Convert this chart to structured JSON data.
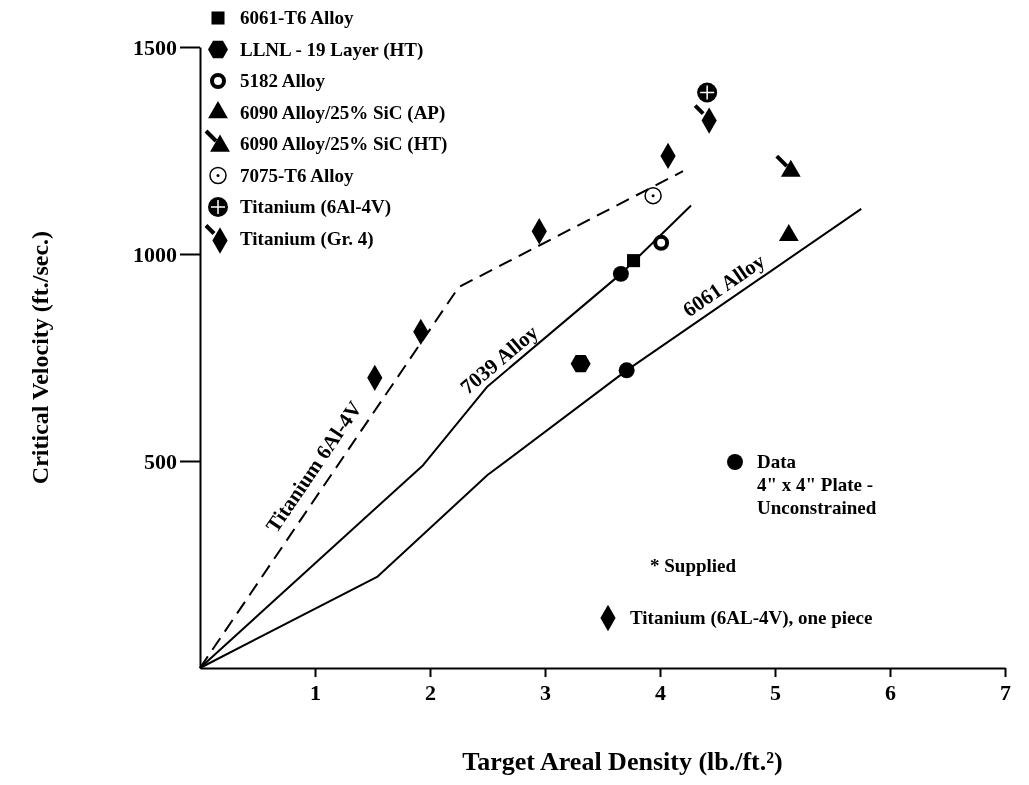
{
  "chart_data": {
    "type": "scatter",
    "xlabel": "Target Areal Density (lb./ft.²)",
    "ylabel": "Critical Velocity (ft./sec.)",
    "xlim": [
      0,
      7
    ],
    "xticks": [
      1,
      2,
      3,
      4,
      5,
      6,
      7
    ],
    "ylim": [
      0,
      1500
    ],
    "yticks": [
      500,
      1000,
      1500
    ],
    "grid": false,
    "legend": "top left",
    "annotations": [
      "* Supplied"
    ],
    "series": [
      {
        "name": "6061-T6 Alloy",
        "color": "#000000",
        "marker": "square",
        "x": [
          3.77
        ],
        "values": [
          984
        ]
      },
      {
        "name": "LLNL - 19 Layer (HT)",
        "color": "#000000",
        "marker": "circle-hexagon",
        "x": [
          3.31
        ],
        "values": [
          735
        ]
      },
      {
        "name": "5182 Alloy",
        "color": "#000000",
        "marker": "circle-open",
        "x": [
          4.01
        ],
        "values": [
          1027
        ]
      },
      {
        "name": "6090 Alloy/25% SiC (AP)",
        "color": "#000000",
        "marker": "triangle",
        "x": [
          5.12
        ],
        "values": [
          1045
        ]
      },
      {
        "name": "6090 Alloy/25% SiC (HT)",
        "color": "#000000",
        "marker": "triangle-arrow",
        "x": [
          5.12
        ],
        "values": [
          1205
        ]
      },
      {
        "name": "7075-T6 Alloy",
        "color": "#000000",
        "marker": "circle-dot",
        "x": [
          3.94
        ],
        "values": [
          1141
        ]
      },
      {
        "name": "Titanium (6Al-4V)",
        "color": "#000000",
        "marker": "circle-cross",
        "x": [
          4.41
        ],
        "values": [
          1390
        ]
      },
      {
        "name": "Titanium (Gr. 4)",
        "color": "#000000",
        "marker": "diamond-arrow",
        "x": [
          4.41
        ],
        "values": [
          1327
        ]
      },
      {
        "name": "Data\n4\" x 4\" Plate -\nUnconstrained",
        "color": "#000000",
        "marker": "circle",
        "x": [
          3.66,
          3.71
        ],
        "values": [
          952,
          719
        ]
      },
      {
        "name": "Titanium (6AL-4V), one piece",
        "color": "#000000",
        "marker": "diamond",
        "x": [
          1.52,
          1.92,
          2.95,
          4.07
        ],
        "values": [
          701,
          812,
          1055,
          1237
        ]
      },
      {
        "name": "Titanium 6Al-4V",
        "type": "line",
        "color": "#000000",
        "line_style": "dashed",
        "marker": "none",
        "x": [
          0,
          2.25,
          4.2
        ],
        "values": [
          0,
          920,
          1200
        ]
      },
      {
        "name": "7039 Alloy",
        "type": "line",
        "color": "#000000",
        "line_style": "solid",
        "marker": "none",
        "x": [
          0,
          1.94,
          2.5,
          3.66,
          4.27
        ],
        "values": [
          0,
          490,
          680,
          952,
          1117
        ]
      },
      {
        "name": "6061 Alloy",
        "type": "line",
        "color": "#000000",
        "line_style": "solid",
        "marker": "none",
        "x": [
          0,
          1.54,
          2.5,
          3.71,
          5.75
        ],
        "values": [
          0,
          220,
          466,
          719,
          1109
        ]
      }
    ]
  }
}
